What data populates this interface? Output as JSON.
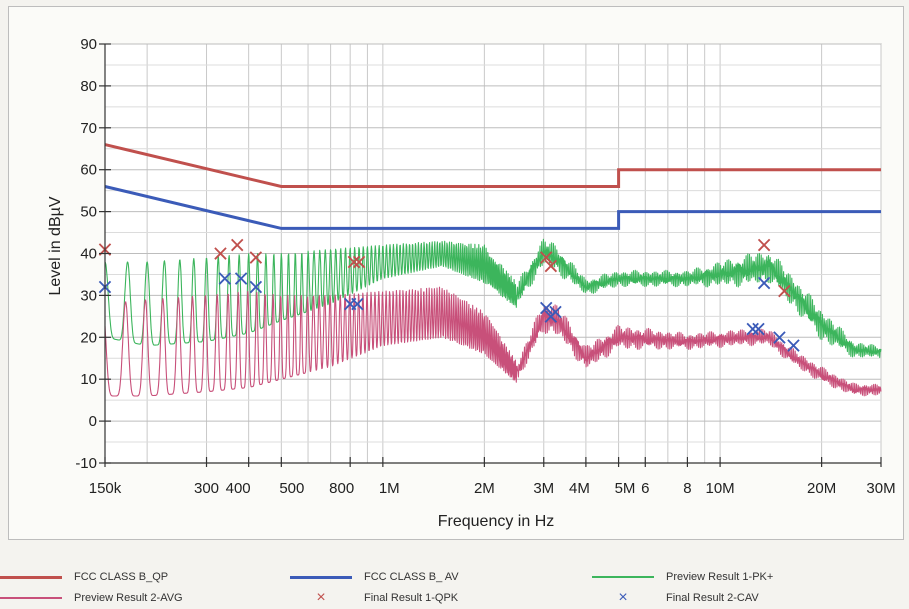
{
  "chart_data": {
    "type": "line",
    "ylabel": "Level in dBµV",
    "xlabel": "Frequency in Hz",
    "x_scale": "log",
    "xlim_hz": [
      150000,
      30000000
    ],
    "ylim": [
      -10,
      90
    ],
    "grid": true,
    "x_tick_labels": [
      {
        "hz": 150000,
        "label": "150k"
      },
      {
        "hz": 300000,
        "label": "300"
      },
      {
        "hz": 400000,
        "label": "400"
      },
      {
        "hz": 500000,
        "label": "500"
      },
      {
        "hz": 800000,
        "label": "800"
      },
      {
        "hz": 1000000,
        "label": "1M"
      },
      {
        "hz": 2000000,
        "label": "2M"
      },
      {
        "hz": 3000000,
        "label": "3M"
      },
      {
        "hz": 4000000,
        "label": "4M"
      },
      {
        "hz": 5000000,
        "label": "5M"
      },
      {
        "hz": 6000000,
        "label": "6"
      },
      {
        "hz": 8000000,
        "label": "8"
      },
      {
        "hz": 10000000,
        "label": "10M"
      },
      {
        "hz": 20000000,
        "label": "20M"
      },
      {
        "hz": 30000000,
        "label": "30M"
      }
    ],
    "y_ticks": [
      -10,
      0,
      10,
      20,
      30,
      40,
      50,
      60,
      70,
      80,
      90
    ],
    "series": [
      {
        "name": "FCC CLASS B_QP",
        "kind": "limit",
        "color": "#c0504d",
        "points": [
          [
            150000,
            66
          ],
          [
            500000,
            56
          ],
          [
            5000000,
            56
          ],
          [
            5000000,
            60
          ],
          [
            30000000,
            60
          ]
        ]
      },
      {
        "name": "FCC CLASS B_ AV",
        "kind": "limit",
        "color": "#3b5bb8",
        "points": [
          [
            150000,
            56
          ],
          [
            500000,
            46
          ],
          [
            5000000,
            46
          ],
          [
            5000000,
            50
          ],
          [
            30000000,
            50
          ]
        ]
      },
      {
        "name": "Preview Result 1-PK+",
        "kind": "trace",
        "color": "#3cb55c",
        "envelope_top": [
          [
            150000,
            38
          ],
          [
            200000,
            38
          ],
          [
            300000,
            39
          ],
          [
            400000,
            40
          ],
          [
            500000,
            40
          ],
          [
            700000,
            41
          ],
          [
            1000000,
            42
          ],
          [
            1500000,
            43
          ],
          [
            2000000,
            42
          ],
          [
            2500000,
            33
          ],
          [
            3000000,
            44
          ],
          [
            3300000,
            42
          ],
          [
            4000000,
            34
          ],
          [
            5000000,
            36
          ],
          [
            8000000,
            36
          ],
          [
            12000000,
            40
          ],
          [
            14000000,
            41
          ],
          [
            16000000,
            36
          ],
          [
            20000000,
            27
          ],
          [
            25000000,
            19
          ],
          [
            30000000,
            18
          ]
        ],
        "envelope_bottom": [
          [
            150000,
            20
          ],
          [
            200000,
            18
          ],
          [
            300000,
            19
          ],
          [
            400000,
            21
          ],
          [
            500000,
            24
          ],
          [
            700000,
            28
          ],
          [
            1000000,
            34
          ],
          [
            1500000,
            37
          ],
          [
            2000000,
            33
          ],
          [
            2500000,
            27
          ],
          [
            3000000,
            37
          ],
          [
            3300000,
            35
          ],
          [
            4000000,
            30
          ],
          [
            5000000,
            32
          ],
          [
            8000000,
            32
          ],
          [
            12000000,
            32
          ],
          [
            14000000,
            33
          ],
          [
            16000000,
            28
          ],
          [
            20000000,
            19
          ],
          [
            25000000,
            15
          ],
          [
            30000000,
            15
          ]
        ]
      },
      {
        "name": "Preview Result 2-AVG",
        "kind": "trace",
        "color": "#c8507a",
        "envelope_top": [
          [
            150000,
            28
          ],
          [
            200000,
            29
          ],
          [
            300000,
            30
          ],
          [
            400000,
            31
          ],
          [
            500000,
            30
          ],
          [
            700000,
            30
          ],
          [
            1000000,
            31
          ],
          [
            1500000,
            32
          ],
          [
            2000000,
            26
          ],
          [
            2500000,
            14
          ],
          [
            3000000,
            29
          ],
          [
            3300000,
            28
          ],
          [
            4000000,
            18
          ],
          [
            5000000,
            23
          ],
          [
            8000000,
            21
          ],
          [
            12000000,
            22
          ],
          [
            14000000,
            22
          ],
          [
            16000000,
            18
          ],
          [
            20000000,
            13
          ],
          [
            25000000,
            9
          ],
          [
            30000000,
            9
          ]
        ],
        "envelope_bottom": [
          [
            150000,
            6
          ],
          [
            200000,
            6
          ],
          [
            300000,
            7
          ],
          [
            400000,
            8
          ],
          [
            500000,
            10
          ],
          [
            700000,
            13
          ],
          [
            1000000,
            18
          ],
          [
            1500000,
            20
          ],
          [
            2000000,
            16
          ],
          [
            2500000,
            9
          ],
          [
            3000000,
            21
          ],
          [
            3300000,
            20
          ],
          [
            4000000,
            12
          ],
          [
            5000000,
            17
          ],
          [
            8000000,
            17
          ],
          [
            12000000,
            18
          ],
          [
            14000000,
            18
          ],
          [
            16000000,
            14
          ],
          [
            20000000,
            9
          ],
          [
            25000000,
            6
          ],
          [
            30000000,
            6
          ]
        ]
      },
      {
        "name": "Final Result 1-QPK",
        "kind": "markers",
        "marker": "×",
        "color": "#c0504d",
        "points": [
          [
            150000,
            41
          ],
          [
            330000,
            40
          ],
          [
            370000,
            42
          ],
          [
            420000,
            39
          ],
          [
            820000,
            38
          ],
          [
            850000,
            38
          ],
          [
            3050000,
            39
          ],
          [
            3150000,
            37
          ],
          [
            13500000,
            42
          ],
          [
            15500000,
            31
          ]
        ]
      },
      {
        "name": "Final Result 2-CAV",
        "kind": "markers",
        "marker": "×",
        "color": "#3b5bb8",
        "points": [
          [
            150000,
            32
          ],
          [
            340000,
            34
          ],
          [
            380000,
            34
          ],
          [
            420000,
            32
          ],
          [
            800000,
            28
          ],
          [
            840000,
            28
          ],
          [
            3050000,
            27
          ],
          [
            3150000,
            25
          ],
          [
            3250000,
            26
          ],
          [
            12500000,
            22
          ],
          [
            13000000,
            22
          ],
          [
            13500000,
            33
          ],
          [
            15000000,
            20
          ],
          [
            16500000,
            18
          ]
        ]
      }
    ]
  },
  "legend": [
    {
      "label": "FCC CLASS B_QP",
      "symbol": "line",
      "color": "#c0504d"
    },
    {
      "label": "FCC CLASS B_ AV",
      "symbol": "line",
      "color": "#3b5bb8"
    },
    {
      "label": "Preview Result 1-PK+",
      "symbol": "thin-line",
      "color": "#3cb55c"
    },
    {
      "label": "Preview Result 2-AVG",
      "symbol": "thin-line",
      "color": "#c8507a"
    },
    {
      "label": "Final Result 1-QPK",
      "symbol": "×",
      "color": "#c0504d"
    },
    {
      "label": "Final Result 2-CAV",
      "symbol": "×",
      "color": "#3b5bb8"
    }
  ]
}
